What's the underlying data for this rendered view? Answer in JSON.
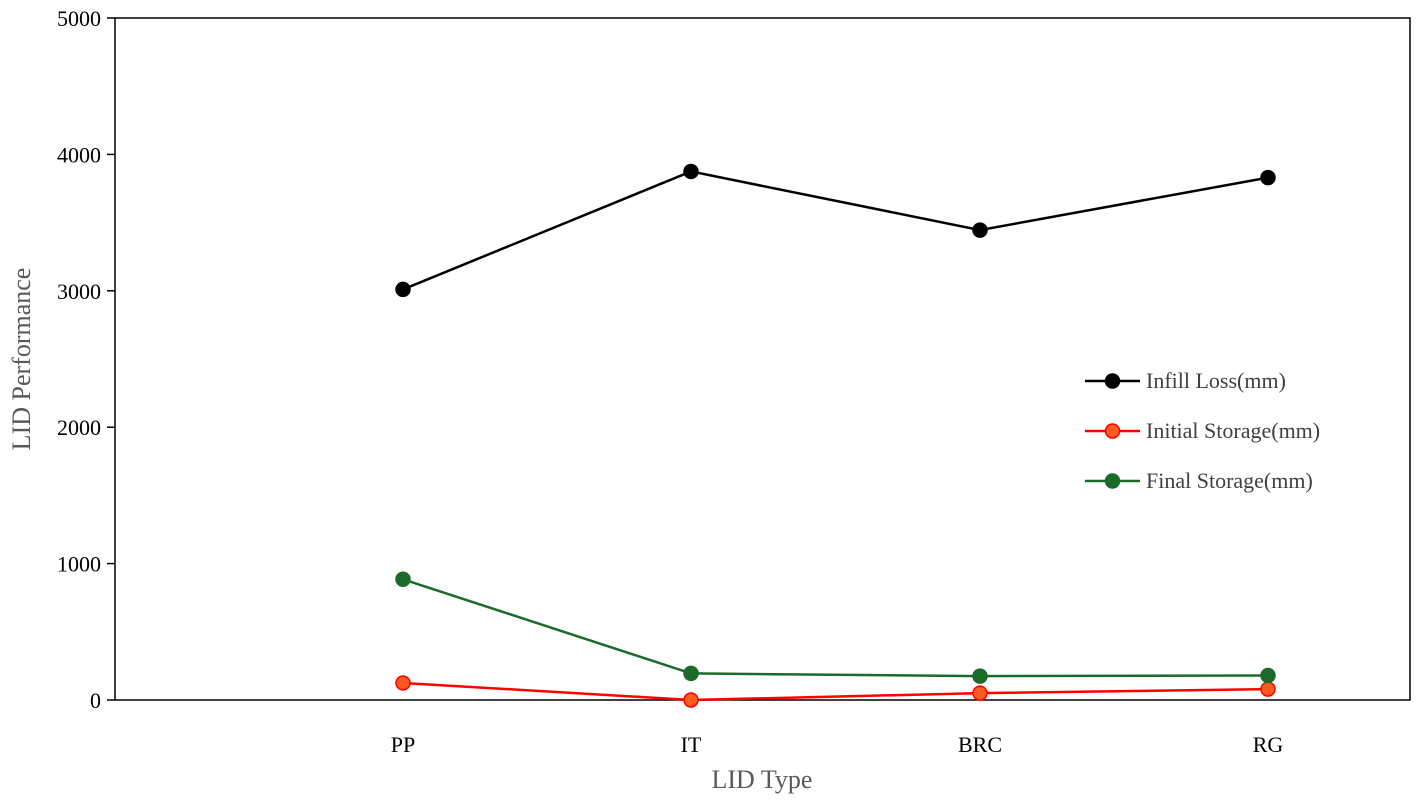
{
  "chart_data": {
    "type": "line",
    "title": "",
    "xlabel": "LID Type",
    "ylabel": "LID Performance",
    "categories": [
      "PP",
      "IT",
      "BRC",
      "RG"
    ],
    "ylim": [
      0,
      5000
    ],
    "yticks": [
      0,
      1000,
      2000,
      3000,
      4000,
      5000
    ],
    "grid": false,
    "legend_position": "right",
    "series": [
      {
        "name": "Infill Loss(mm)",
        "color": "#000000",
        "values": [
          3010,
          3875,
          3445,
          3830
        ]
      },
      {
        "name": "Initial Storage(mm)",
        "color": "#ff0000",
        "values": [
          125,
          0,
          50,
          80
        ]
      },
      {
        "name": "Final Storage(mm)",
        "color": "#1a6b2a",
        "values": [
          885,
          195,
          175,
          180
        ]
      }
    ]
  }
}
